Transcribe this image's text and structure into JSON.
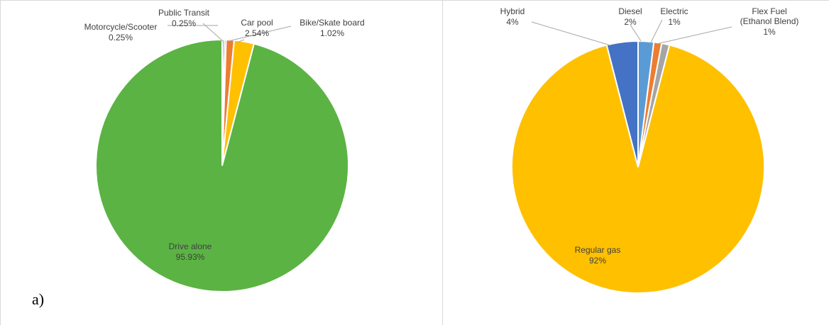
{
  "panel_label": "a)",
  "chart_data": [
    {
      "type": "pie",
      "categories": [
        "Drive alone",
        "Motorcycle/Scooter",
        "Public Transit",
        "Bike/Skate board",
        "Car pool"
      ],
      "values": [
        95.93,
        0.25,
        0.25,
        1.02,
        2.54
      ],
      "value_labels": [
        "95.93%",
        "0.25%",
        "0.25%",
        "1.02%",
        "2.54%"
      ],
      "colors": [
        "#5bb344",
        "#4472c4",
        "#a5a5a5",
        "#ed7d31",
        "#ffc000"
      ],
      "title": ""
    },
    {
      "type": "pie",
      "categories": [
        "Regular gas",
        "Hybrid",
        "Diesel",
        "Electric",
        "Flex Fuel (Ethanol Blend)"
      ],
      "values": [
        92,
        4,
        2,
        1,
        1
      ],
      "value_labels": [
        "92%",
        "4%",
        "2%",
        "1%",
        "1%"
      ],
      "colors": [
        "#ffc000",
        "#4472c4",
        "#5b9bd5",
        "#ed7d31",
        "#a5a5a5"
      ],
      "title": ""
    }
  ]
}
